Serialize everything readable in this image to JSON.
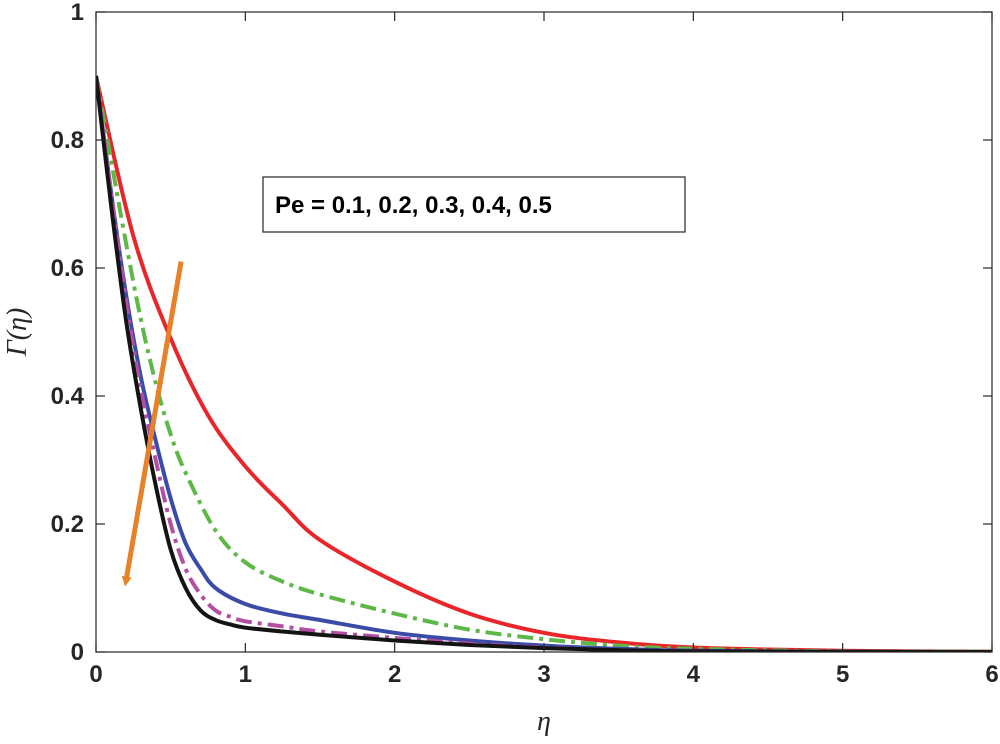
{
  "chart_data": {
    "type": "line",
    "xlabel": "η",
    "ylabel": "Γ(η)",
    "xlim": [
      0,
      6
    ],
    "ylim": [
      0,
      1
    ],
    "xticks": [
      "0",
      "1",
      "2",
      "3",
      "4",
      "5",
      "6"
    ],
    "yticks": [
      "0",
      "0.2",
      "0.4",
      "0.6",
      "0.8",
      "1"
    ],
    "grid": false,
    "annotation": "Pe = 0.1, 0.2, 0.3, 0.4, 0.5",
    "arrow": {
      "from": [
        0.57,
        0.61
      ],
      "to": [
        0.2,
        0.11
      ],
      "color": "#e8822a"
    },
    "series": [
      {
        "color": "#e8262a",
        "style": "solid",
        "x": [
          0,
          0.25,
          0.5,
          0.75,
          1.0,
          1.25,
          1.5,
          2.0,
          2.5,
          3.0,
          3.5,
          4.0,
          4.5,
          5.0,
          5.5,
          6.0
        ],
        "y": [
          0.9,
          0.65,
          0.49,
          0.37,
          0.29,
          0.23,
          0.175,
          0.11,
          0.06,
          0.03,
          0.015,
          0.007,
          0.004,
          0.002,
          0.001,
          0.0005
        ]
      },
      {
        "color": "#5db847",
        "style": "dashdot",
        "x": [
          0,
          0.1,
          0.2,
          0.3,
          0.4,
          0.5,
          0.6,
          0.8,
          1.0,
          1.25,
          1.5,
          2.0,
          2.5,
          3.0,
          3.5,
          4.0,
          5.0,
          6.0
        ],
        "y": [
          0.9,
          0.77,
          0.64,
          0.52,
          0.42,
          0.34,
          0.28,
          0.19,
          0.14,
          0.11,
          0.09,
          0.06,
          0.035,
          0.02,
          0.01,
          0.005,
          0.001,
          0.0003
        ]
      },
      {
        "color": "#3b4ba8",
        "style": "solid",
        "x": [
          0,
          0.1,
          0.2,
          0.3,
          0.4,
          0.5,
          0.6,
          0.7,
          0.8,
          1.0,
          1.25,
          1.5,
          2.0,
          2.5,
          3.0,
          3.5,
          4.0,
          5.0,
          6.0
        ],
        "y": [
          0.9,
          0.72,
          0.56,
          0.43,
          0.33,
          0.24,
          0.17,
          0.13,
          0.1,
          0.075,
          0.06,
          0.05,
          0.03,
          0.018,
          0.01,
          0.005,
          0.002,
          0.0005,
          0.0001
        ]
      },
      {
        "color": "#b44ea3",
        "style": "dashdot",
        "x": [
          0,
          0.1,
          0.2,
          0.3,
          0.4,
          0.5,
          0.6,
          0.7,
          0.8,
          0.9,
          1.0,
          1.25,
          1.5,
          2.0,
          2.5,
          3.0,
          3.5,
          4.0,
          5.0,
          6.0
        ],
        "y": [
          0.9,
          0.72,
          0.55,
          0.41,
          0.3,
          0.2,
          0.13,
          0.09,
          0.065,
          0.055,
          0.048,
          0.04,
          0.032,
          0.022,
          0.013,
          0.007,
          0.003,
          0.001,
          0.0002,
          0.0001
        ]
      },
      {
        "color": "#141414",
        "style": "solid",
        "x": [
          0,
          0.1,
          0.2,
          0.3,
          0.4,
          0.5,
          0.6,
          0.7,
          0.8,
          0.9,
          1.0,
          1.25,
          1.5,
          2.0,
          2.5,
          3.0,
          3.5,
          4.0,
          5.0,
          6.0
        ],
        "y": [
          0.9,
          0.7,
          0.52,
          0.38,
          0.26,
          0.16,
          0.1,
          0.065,
          0.05,
          0.043,
          0.038,
          0.032,
          0.027,
          0.018,
          0.011,
          0.006,
          0.003,
          0.001,
          0.0002,
          0.0001
        ]
      }
    ]
  }
}
